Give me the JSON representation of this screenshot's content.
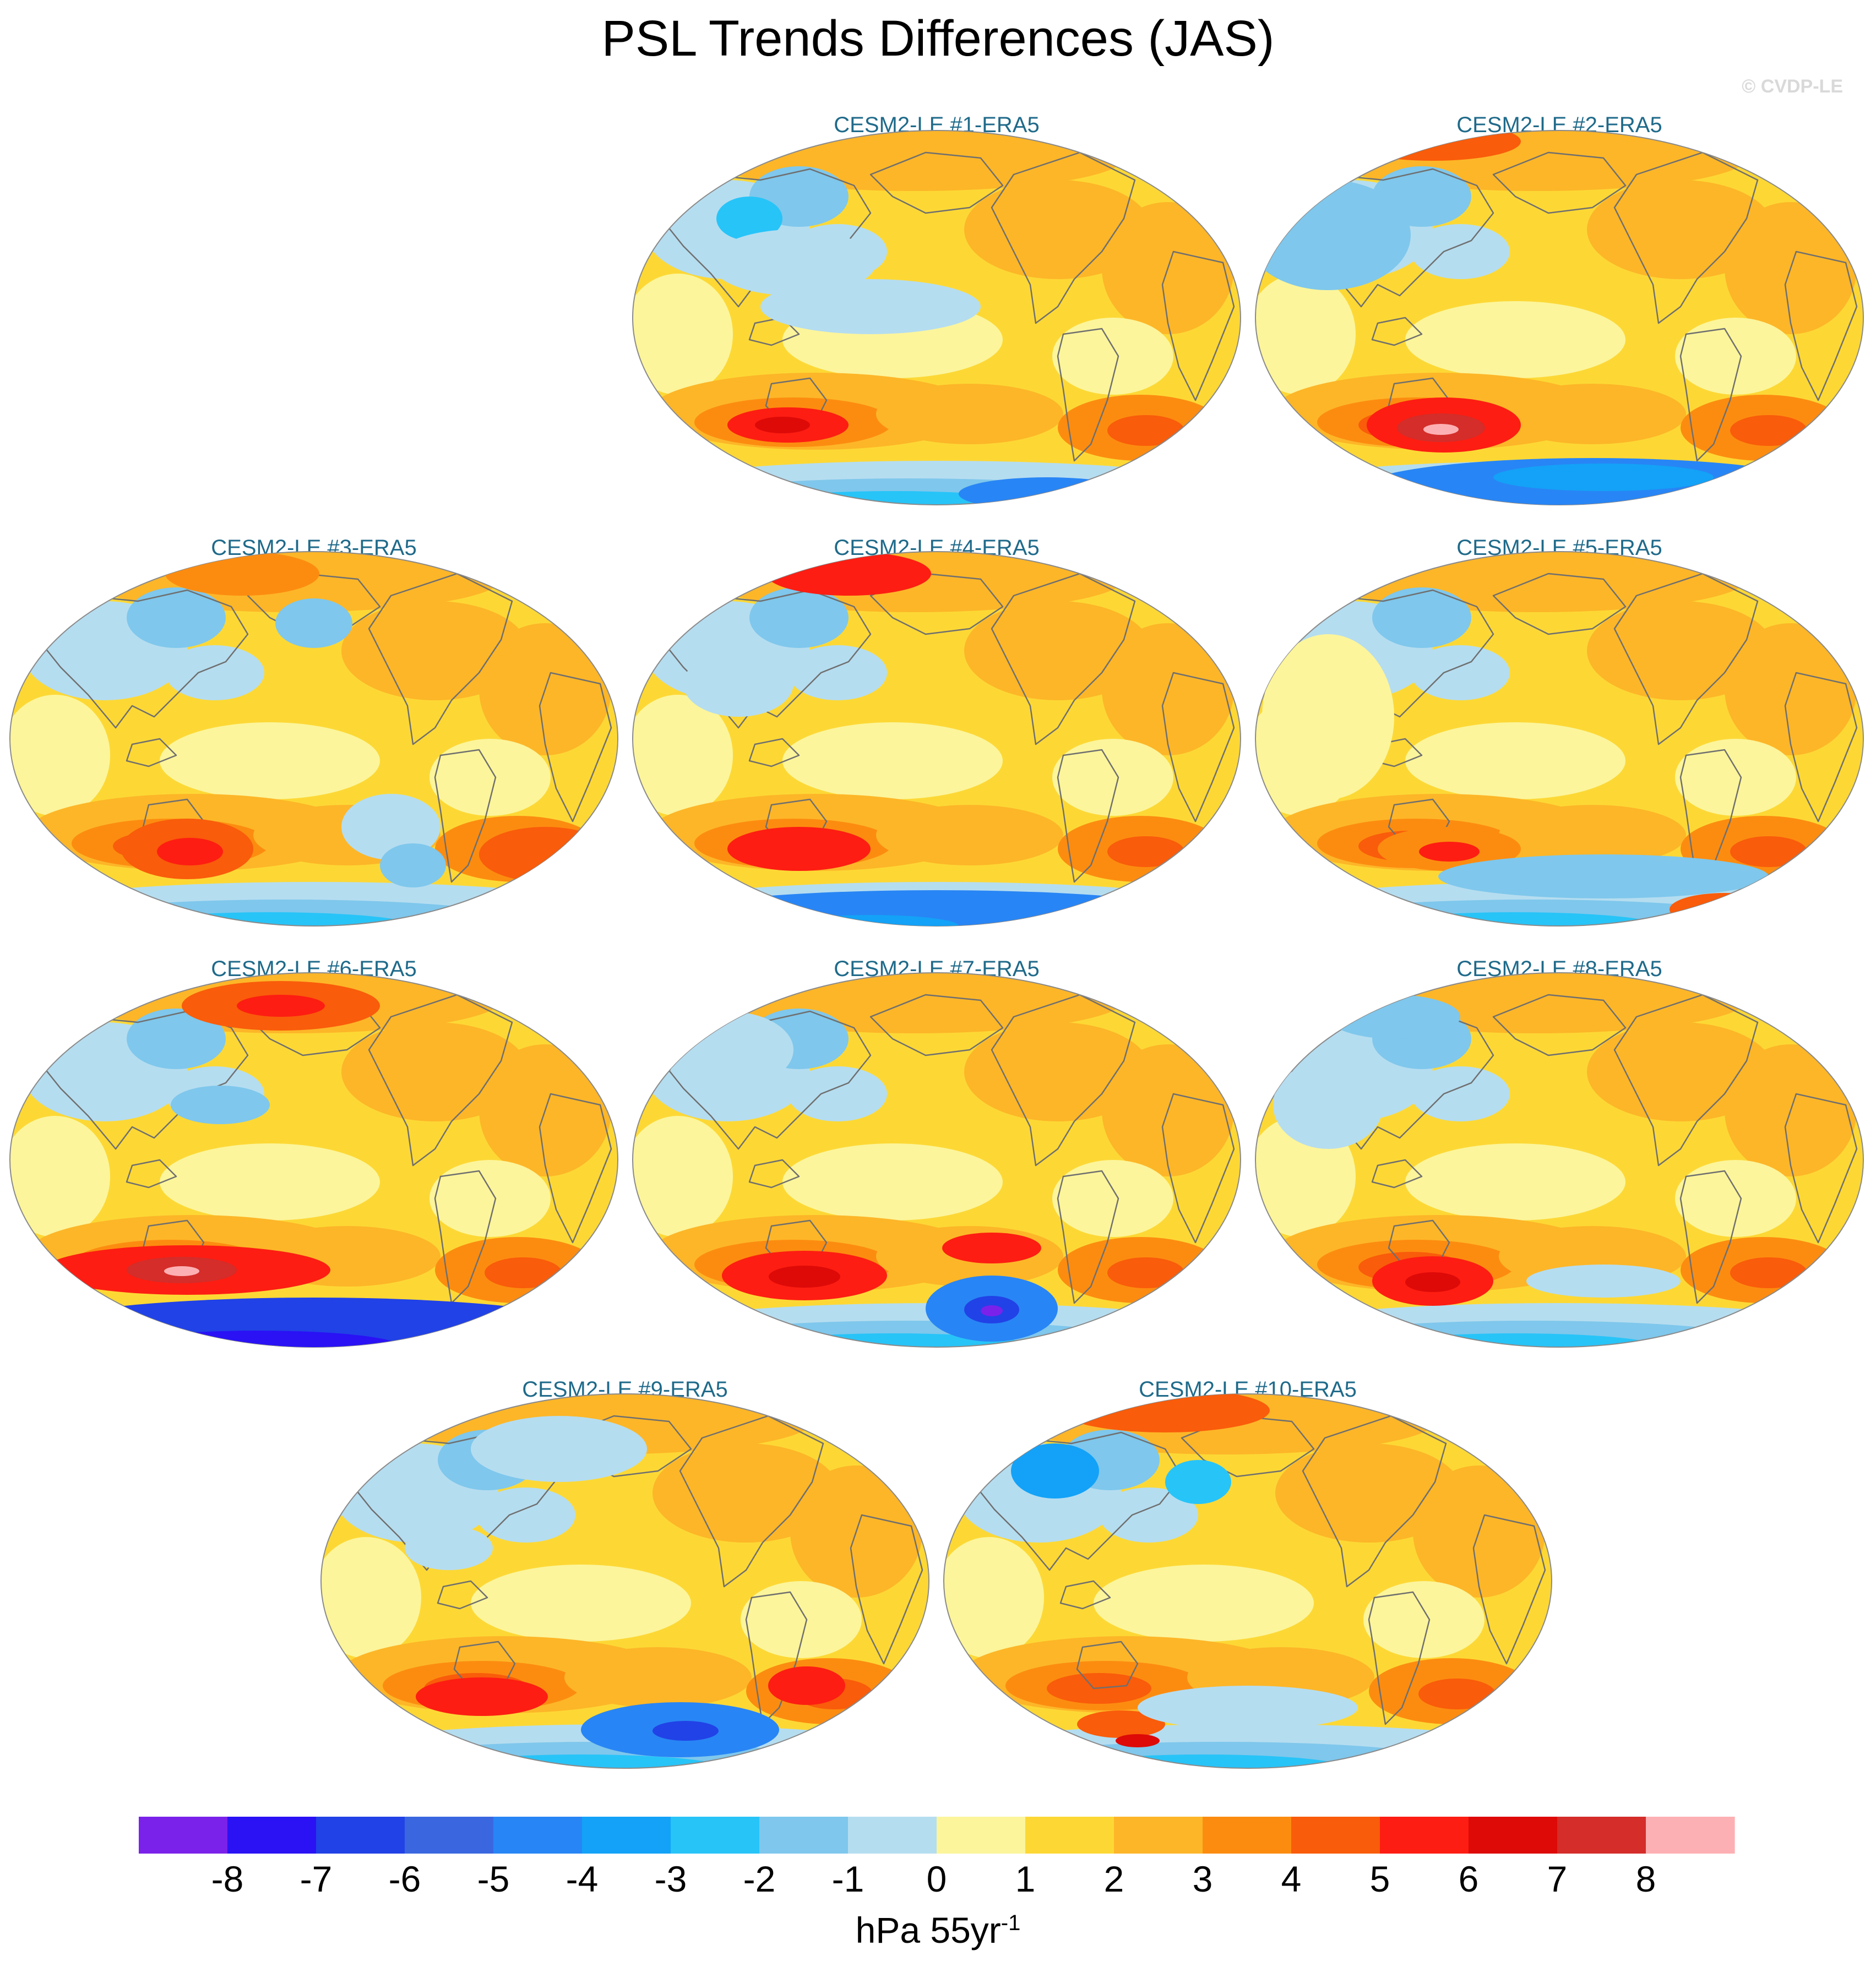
{
  "title": "PSL Trends Differences (JAS)",
  "copyright": "© CVDP-LE",
  "chart_data": {
    "type": "heatmap",
    "projection": "Robinson",
    "variable": "PSL trend difference (model minus observations)",
    "season": "JAS",
    "units_base": "hPa 55yr",
    "units_exponent": "-1",
    "colorbar": {
      "levels": [
        -8,
        -7,
        -6,
        -5,
        -4,
        -3,
        -2,
        -1,
        0,
        1,
        2,
        3,
        4,
        5,
        6,
        7,
        8
      ],
      "colors": [
        "#7b22ea",
        "#2a12f5",
        "#2142e6",
        "#3a67e0",
        "#2885f5",
        "#13a2f7",
        "#27c4f8",
        "#7fc7ec",
        "#b5ddf0",
        "#fcf59b",
        "#fdd835",
        "#fdb628",
        "#fc8c10",
        "#f95c0a",
        "#fd1d12",
        "#dd0a08",
        "#d42d2a",
        "#fdb0b3"
      ]
    },
    "panels": [
      {
        "title": "CESM2-LE #1-ERA5"
      },
      {
        "title": "CESM2-LE #2-ERA5"
      },
      {
        "title": "CESM2-LE #3-ERA5"
      },
      {
        "title": "CESM2-LE #4-ERA5"
      },
      {
        "title": "CESM2-LE #5-ERA5"
      },
      {
        "title": "CESM2-LE #6-ERA5"
      },
      {
        "title": "CESM2-LE #7-ERA5"
      },
      {
        "title": "CESM2-LE #8-ERA5"
      },
      {
        "title": "CESM2-LE #9-ERA5"
      },
      {
        "title": "CESM2-LE #10-ERA5"
      }
    ]
  }
}
